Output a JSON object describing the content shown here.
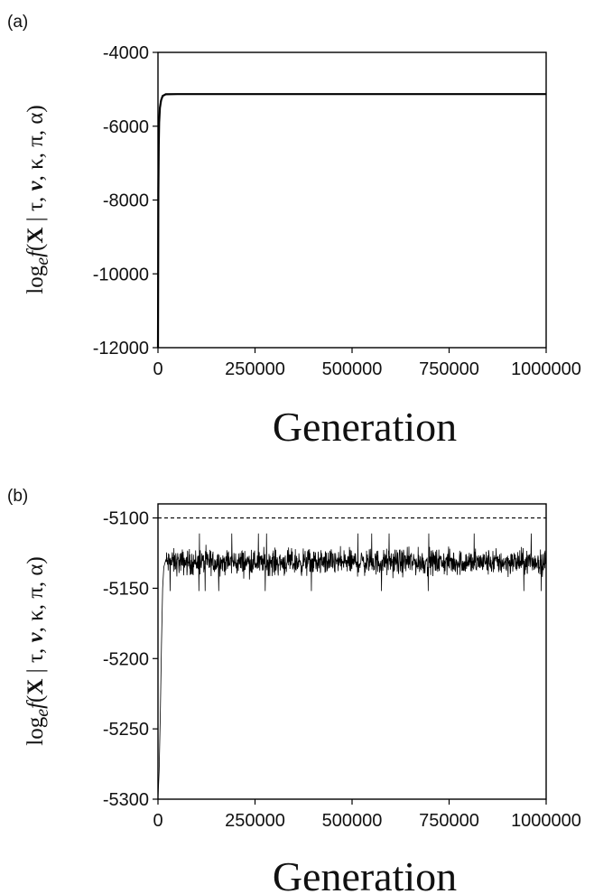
{
  "chart_data": [
    {
      "panel_label": "(a)",
      "type": "line",
      "xlabel": "Generation",
      "ylabel": {
        "prefix": "log",
        "subscript": "e",
        "italic_f": "f",
        "open": "(",
        "bold_var": "X",
        "rest": " | τ, ",
        "bold_nu": "ν",
        "tail": ", κ, π, α)"
      },
      "xlim": [
        0,
        1000000
      ],
      "ylim": [
        -12000,
        -4000
      ],
      "xticks": [
        0,
        250000,
        500000,
        750000,
        1000000
      ],
      "xtick_labels": [
        "0",
        "250000",
        "500000",
        "750000",
        "1000000"
      ],
      "yticks": [
        -12000,
        -10000,
        -8000,
        -6000,
        -4000
      ],
      "ytick_labels": [
        "-12000",
        "-10000",
        "-8000",
        "-6000",
        "-4000"
      ],
      "grid": false,
      "series": [
        {
          "x": [
            0,
            1000,
            2000,
            3000,
            5000,
            8000,
            12000,
            20000,
            50000,
            100000,
            250000,
            500000,
            750000,
            1000000
          ],
          "y": [
            -12000,
            -7800,
            -6500,
            -5900,
            -5500,
            -5300,
            -5180,
            -5135,
            -5130,
            -5130,
            -5130,
            -5130,
            -5130,
            -5130
          ]
        }
      ]
    },
    {
      "panel_label": "(b)",
      "type": "line",
      "xlabel": "Generation",
      "ylabel": {
        "prefix": "log",
        "subscript": "e",
        "italic_f": "f",
        "open": "(",
        "bold_var": "X",
        "rest": " | τ, ",
        "bold_nu": "ν",
        "tail": ", κ, π, α)"
      },
      "xlim": [
        0,
        1000000
      ],
      "ylim": [
        -5300,
        -5090
      ],
      "xticks": [
        0,
        250000,
        500000,
        750000,
        1000000
      ],
      "xtick_labels": [
        "0",
        "250000",
        "500000",
        "750000",
        "1000000"
      ],
      "yticks": [
        -5300,
        -5250,
        -5200,
        -5150,
        -5100
      ],
      "ytick_labels": [
        "-5300",
        "-5250",
        "-5200",
        "-5150",
        "-5100"
      ],
      "grid": false,
      "reference_line": {
        "y": -5100,
        "style": "dashed"
      },
      "series": [
        {
          "x": [
            0,
            3000,
            6000,
            9000,
            12000,
            15000,
            20000,
            1000000
          ],
          "y": [
            -5300,
            -5280,
            -5240,
            -5190,
            -5150,
            -5135,
            -5130,
            -5130
          ],
          "noise_band": {
            "center": -5130,
            "typical_min": -5145,
            "typical_max": -5118,
            "extreme_min": -5152,
            "extreme_max": -5111
          }
        }
      ]
    }
  ]
}
